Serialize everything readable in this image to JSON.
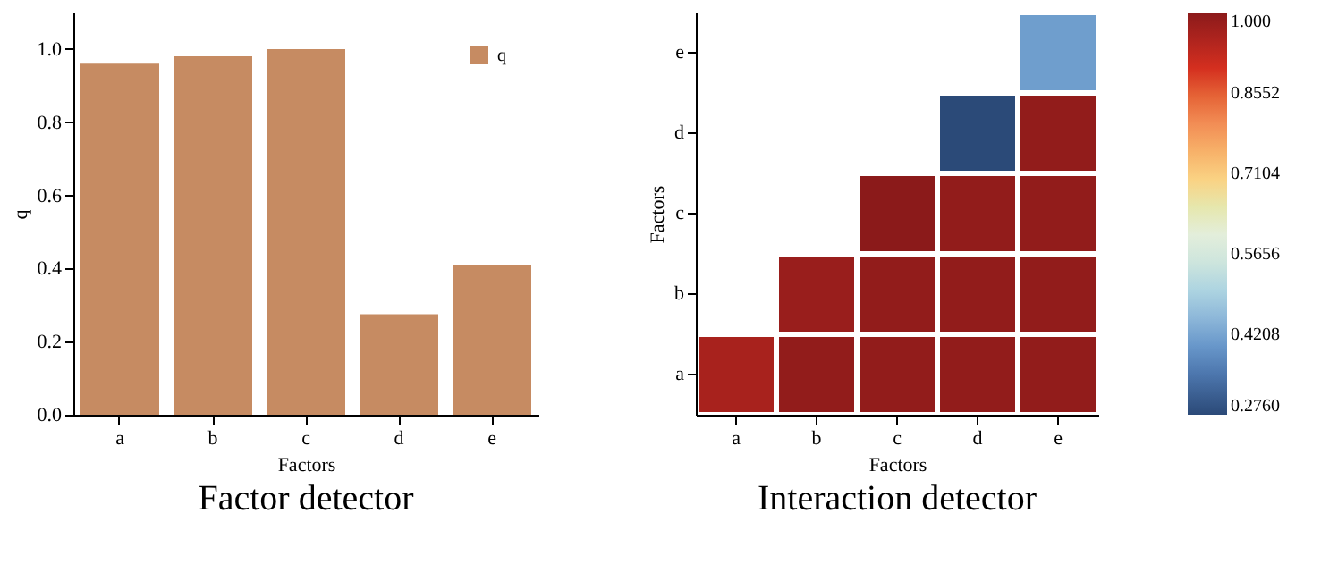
{
  "chart_data": [
    {
      "type": "bar",
      "title": "Factor detector",
      "xlabel": "Factors",
      "ylabel": "q",
      "categories": [
        "a",
        "b",
        "c",
        "d",
        "e"
      ],
      "series": [
        {
          "name": "q",
          "color": "#c68b62",
          "values": [
            0.96,
            0.98,
            1.0,
            0.275,
            0.41
          ]
        }
      ],
      "ylim": [
        0,
        1.1
      ],
      "yticks": [
        {
          "value": 0,
          "label": "0.0"
        },
        0.2,
        0.4,
        0.6,
        0.8,
        {
          "value": 1,
          "label": "1.0"
        }
      ],
      "grid": false,
      "legend": "top right"
    },
    {
      "type": "heatmap",
      "title": "Interaction detector",
      "xlabel": "Factors",
      "ylabel": "Factors",
      "categories": [
        "a",
        "b",
        "c",
        "d",
        "e"
      ],
      "y_categories": [
        "e",
        "d",
        "c",
        "b",
        "a"
      ],
      "cells": [
        [
          null,
          null,
          null,
          null,
          0.41
        ],
        [
          null,
          null,
          null,
          0.276,
          0.99
        ],
        [
          null,
          null,
          1.0,
          0.99,
          0.99
        ],
        [
          null,
          0.98,
          0.99,
          0.99,
          0.99
        ],
        [
          0.96,
          0.99,
          0.99,
          0.99,
          0.99
        ]
      ],
      "clim": [
        0.276,
        1.0
      ],
      "cticks": [
        {
          "value": 0.276,
          "label": "0.2760"
        },
        0.4208,
        0.5656,
        0.7104,
        0.8552,
        {
          "value": 1.0,
          "label": "1.000"
        }
      ],
      "colors": [
        "#2b4a78",
        "#5b8ac4",
        "#a9cce3",
        "#e8efe6",
        "#fbd98a",
        "#f4925a",
        "#d7301f",
        "#8b1a1a"
      ]
    }
  ]
}
